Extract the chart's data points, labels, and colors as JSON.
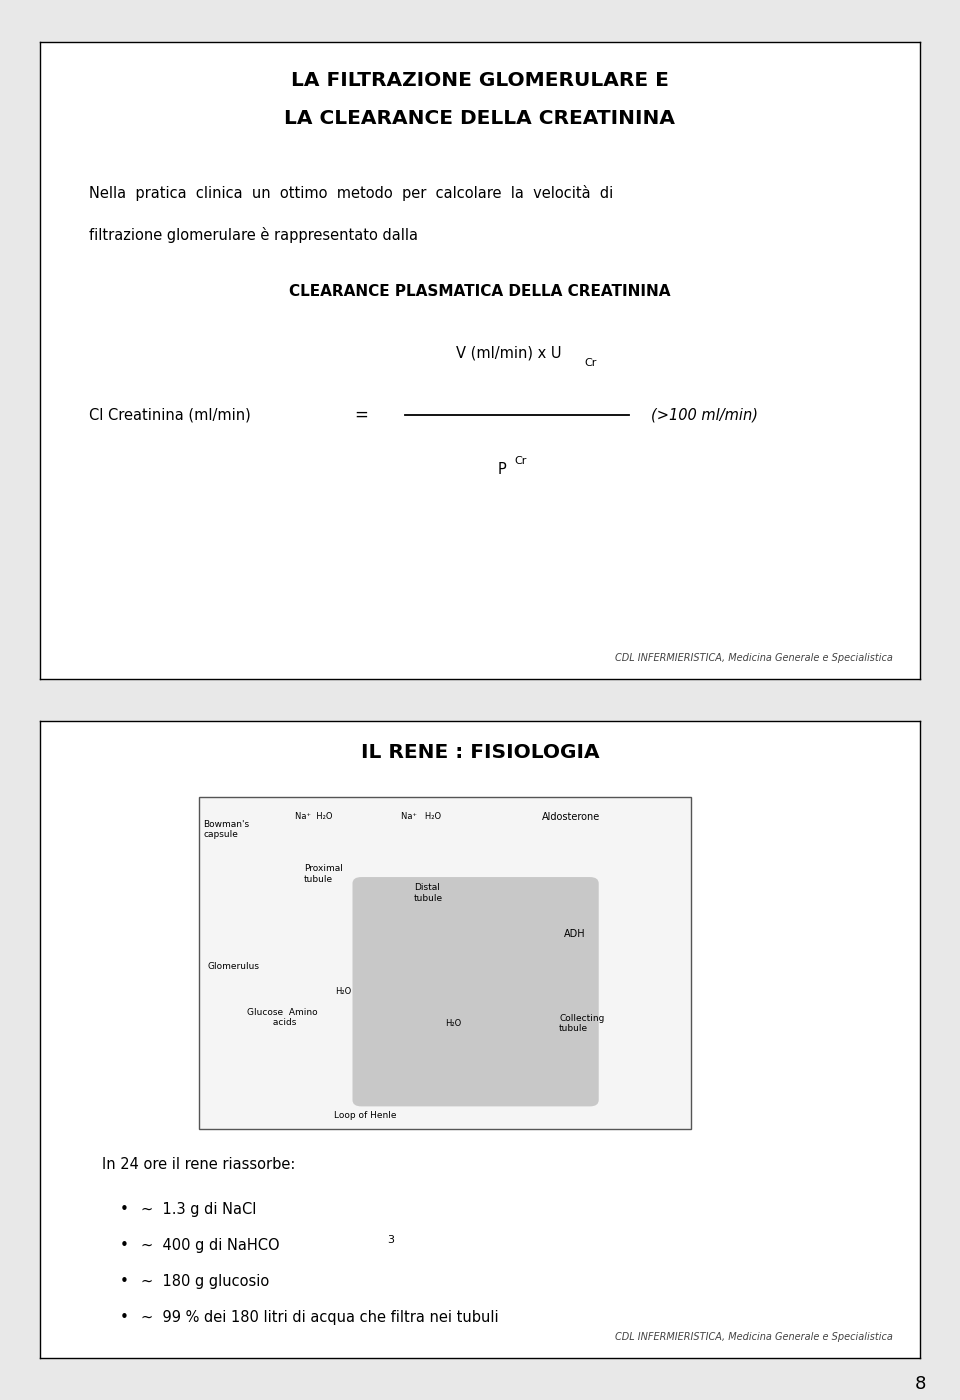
{
  "bg_color": "#ffffff",
  "page_bg": "#e8e8e8",
  "border_color": "#000000",
  "slide1": {
    "title_line1": "LA FILTRAZIONE GLOMERULARE E",
    "title_line2": "LA CLEARANCE DELLA CREATININA",
    "body_text1": "Nella  pratica  clinica  un  ottimo  metodo  per  calcolare  la  velocità  di",
    "body_text2": "filtrazione glomerulare è rappresentato dalla",
    "subtitle": "CLEARANCE PLASMATICA DELLA CREATININA",
    "formula_left": "Cl Creatinina (ml/min)",
    "formula_eq": "=",
    "formula_num": "V (ml/min) x U",
    "formula_num_sub": "Cr",
    "formula_den": "P",
    "formula_den_sub": "Cr",
    "formula_right": "(>100 ml/min)",
    "footer": "CDL INFERMIERISTICA, Medicina Generale e Specialistica"
  },
  "slide2": {
    "title": "IL RENE : FISIOLOGIA",
    "body_intro": "In 24 ore il rene riassorbe:",
    "bullet1": "~  1.3 g di NaCl",
    "bullet2": "~  400 g di NaHCO",
    "bullet2_sub": "3",
    "bullet3": "~  180 g glucosio",
    "bullet4": "~  99 % dei 180 litri di acqua che filtra nei tubuli",
    "footer": "CDL INFERMIERISTICA, Medicina Generale e Specialistica"
  },
  "page_number": "8"
}
